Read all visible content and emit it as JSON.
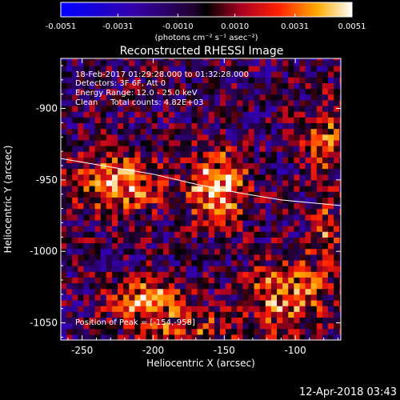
{
  "chart_data": {
    "type": "heatmap",
    "title": "Reconstructed RHESSI Image",
    "xlabel": "Heliocentric X (arcsec)",
    "ylabel": "Heliocentric Y (arcsec)",
    "xlim": [
      -265,
      -68
    ],
    "ylim": [
      -1062,
      -865
    ],
    "xticks": [
      -250,
      -200,
      -150,
      -100
    ],
    "yticks": [
      -900,
      -950,
      -1000,
      -1050
    ],
    "colorbar": {
      "min": -0.0051,
      "max": 0.0051,
      "ticks": [
        -0.0051,
        -0.0031,
        -0.001,
        0.001,
        0.0031,
        0.0051
      ],
      "tick_labels": [
        "-0.0051",
        "-0.0031",
        "-0.0010",
        "0.0010",
        "0.0031",
        "0.0051"
      ],
      "unit_label": "(photons cm⁻² s⁻¹ asec⁻²)",
      "colors": [
        "#0000ff",
        "#000000",
        "#ff0000",
        "#ffcc00",
        "#ffffff"
      ]
    },
    "annotations": {
      "time": "18-Feb-2017 01:29:28.000 to 01:32:28.000",
      "detectors": "Detectors: 3F 6F, Att 0",
      "energy": "Energy Range: 12.0 - 25.0 keV",
      "method": "Clean     Total counts: 4.82E+03",
      "peak": "Position of Peak = [-154,-958]"
    },
    "peak": {
      "x": -154,
      "y": -958,
      "value": 0.0051
    },
    "sources": [
      {
        "x": -154,
        "y": -955,
        "value": 0.0051,
        "sx": 14,
        "sy": 17
      },
      {
        "x": -225,
        "y": -953,
        "value": 0.0046,
        "sx": 20,
        "sy": 15
      },
      {
        "x": -205,
        "y": -1035,
        "value": 0.004,
        "sx": 20,
        "sy": 12
      },
      {
        "x": -105,
        "y": -1030,
        "value": 0.0036,
        "sx": 20,
        "sy": 18
      },
      {
        "x": -80,
        "y": -920,
        "value": 0.0034,
        "sx": 10,
        "sy": 18
      },
      {
        "x": -78,
        "y": -985,
        "value": 0.0026,
        "sx": 8,
        "sy": 18
      },
      {
        "x": -170,
        "y": -1055,
        "value": 0.0022,
        "sx": 25,
        "sy": 8
      }
    ],
    "limb": [
      {
        "x": -265,
        "y": -935
      },
      {
        "x": -230,
        "y": -941
      },
      {
        "x": -200,
        "y": -946
      },
      {
        "x": -170,
        "y": -953
      },
      {
        "x": -140,
        "y": -959
      },
      {
        "x": -110,
        "y": -964
      },
      {
        "x": -68,
        "y": -968
      }
    ],
    "grid": false
  },
  "footer_timestamp": "12-Apr-2018 03:43"
}
